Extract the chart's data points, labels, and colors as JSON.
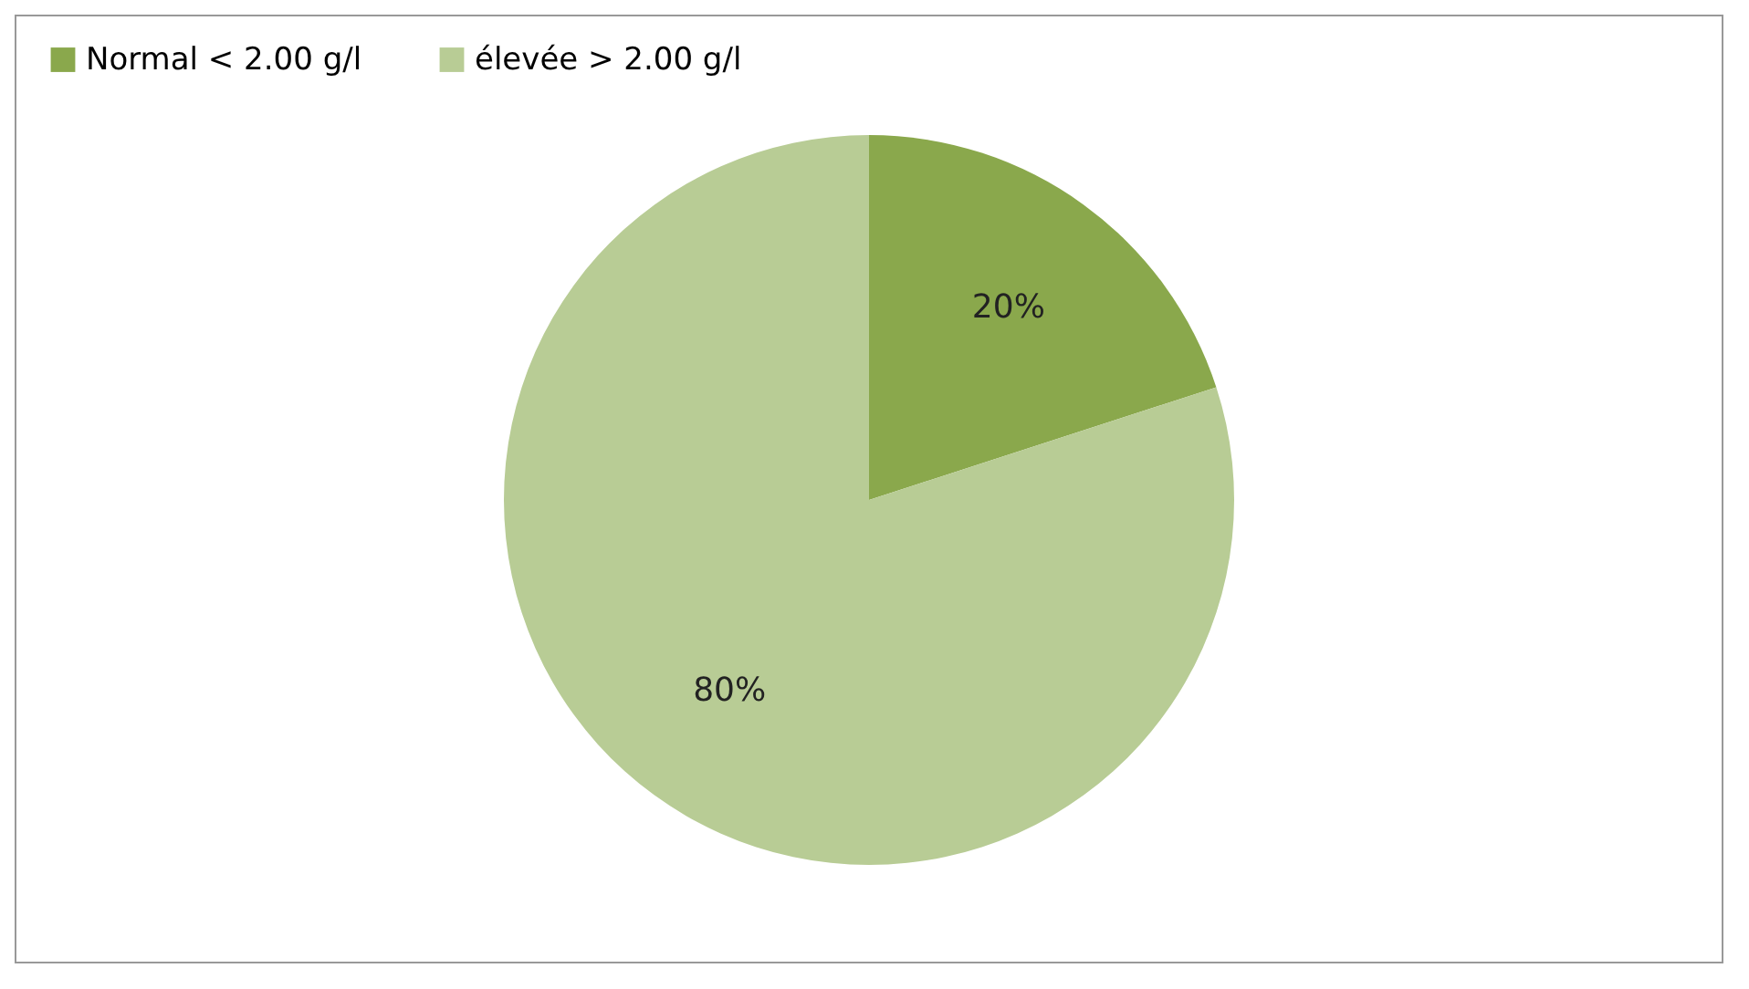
{
  "chart_data": {
    "type": "pie",
    "categories": [
      "Normal < 2.00 g/l",
      "élevée  > 2.00 g/l"
    ],
    "values": [
      20,
      80
    ],
    "colors": [
      "#8aa84c",
      "#b8cc95"
    ],
    "value_labels": [
      "20%",
      "80%"
    ],
    "legend": "top"
  }
}
